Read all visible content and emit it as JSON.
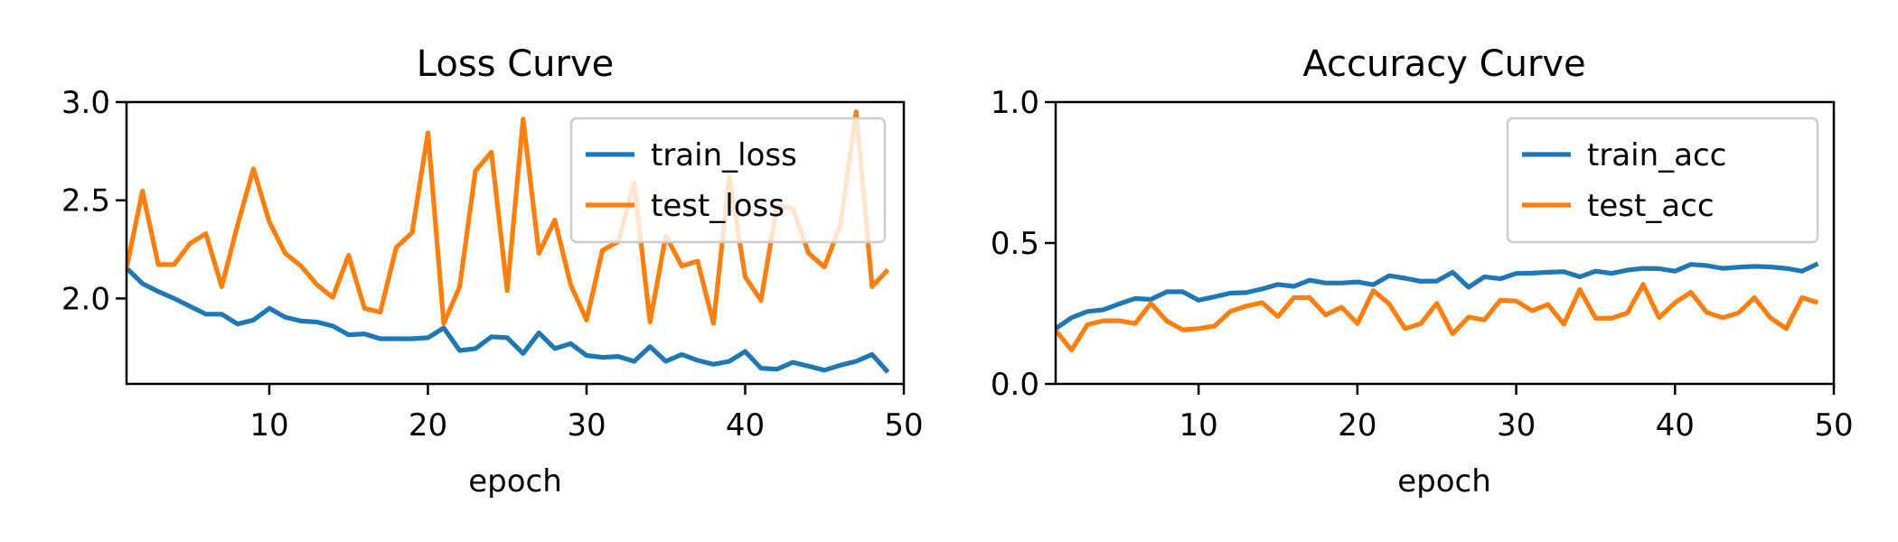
{
  "chart_data": [
    {
      "type": "line",
      "title": "Loss Curve",
      "xlabel": "epoch",
      "ylabel": "",
      "xlim": [
        1,
        50
      ],
      "ylim": [
        1.565,
        3.0
      ],
      "xticks": [
        10,
        20,
        30,
        40,
        50
      ],
      "xtick_labels": [
        "10",
        "20",
        "30",
        "40",
        "50"
      ],
      "yticks": [
        2.0,
        2.5,
        3.0
      ],
      "ytick_labels": [
        "2.0",
        "2.5",
        "3.0"
      ],
      "grid": false,
      "legend": "top-right",
      "x": [
        1,
        2,
        3,
        4,
        5,
        6,
        7,
        8,
        9,
        10,
        11,
        12,
        13,
        14,
        15,
        16,
        17,
        18,
        19,
        20,
        21,
        22,
        23,
        24,
        25,
        26,
        27,
        28,
        29,
        30,
        31,
        32,
        33,
        34,
        35,
        36,
        37,
        38,
        39,
        40,
        41,
        42,
        43,
        44,
        45,
        46,
        47,
        48,
        49
      ],
      "series": [
        {
          "name": "train_loss",
          "color": "#1f77b4",
          "values": [
            2.155,
            2.076,
            2.035,
            2.0,
            1.96,
            1.92,
            1.92,
            1.87,
            1.89,
            1.95,
            1.905,
            1.885,
            1.88,
            1.86,
            1.815,
            1.82,
            1.795,
            1.795,
            1.795,
            1.8,
            1.85,
            1.735,
            1.745,
            1.805,
            1.8,
            1.72,
            1.825,
            1.745,
            1.77,
            1.71,
            1.7,
            1.705,
            1.68,
            1.755,
            1.68,
            1.715,
            1.685,
            1.665,
            1.68,
            1.73,
            1.645,
            1.64,
            1.675,
            1.655,
            1.635,
            1.66,
            1.68,
            1.715,
            1.625
          ]
        },
        {
          "name": "test_loss",
          "color": "#ff7f0e",
          "values": [
            2.155,
            2.547,
            2.173,
            2.173,
            2.28,
            2.33,
            2.06,
            2.375,
            2.66,
            2.39,
            2.23,
            2.165,
            2.07,
            2.005,
            2.22,
            1.95,
            1.93,
            2.26,
            2.335,
            2.843,
            1.873,
            2.06,
            2.65,
            2.745,
            2.04,
            2.913,
            2.23,
            2.4,
            2.07,
            1.89,
            2.245,
            2.29,
            2.59,
            1.88,
            2.32,
            2.165,
            2.19,
            1.873,
            2.62,
            2.11,
            1.99,
            2.47,
            2.46,
            2.23,
            2.16,
            2.375,
            2.95,
            2.06,
            2.146
          ]
        }
      ]
    },
    {
      "type": "line",
      "title": "Accuracy Curve",
      "xlabel": "epoch",
      "ylabel": "",
      "xlim": [
        1,
        50
      ],
      "ylim": [
        0.0,
        1.0
      ],
      "xticks": [
        10,
        20,
        30,
        40,
        50
      ],
      "xtick_labels": [
        "10",
        "20",
        "30",
        "40",
        "50"
      ],
      "yticks": [
        0.0,
        0.5,
        1.0
      ],
      "ytick_labels": [
        "0.0",
        "0.5",
        "1.0"
      ],
      "grid": false,
      "legend": "top-right",
      "x": [
        1,
        2,
        3,
        4,
        5,
        6,
        7,
        8,
        9,
        10,
        11,
        12,
        13,
        14,
        15,
        16,
        17,
        18,
        19,
        20,
        21,
        22,
        23,
        24,
        25,
        26,
        27,
        28,
        29,
        30,
        31,
        32,
        33,
        34,
        35,
        36,
        37,
        38,
        39,
        40,
        41,
        42,
        43,
        44,
        45,
        46,
        47,
        48,
        49
      ],
      "series": [
        {
          "name": "train_acc",
          "color": "#1f77b4",
          "values": [
            0.196,
            0.235,
            0.257,
            0.263,
            0.284,
            0.303,
            0.3,
            0.327,
            0.327,
            0.297,
            0.309,
            0.322,
            0.324,
            0.337,
            0.353,
            0.346,
            0.368,
            0.358,
            0.358,
            0.362,
            0.352,
            0.384,
            0.375,
            0.364,
            0.365,
            0.396,
            0.343,
            0.38,
            0.373,
            0.392,
            0.393,
            0.396,
            0.398,
            0.38,
            0.4,
            0.392,
            0.404,
            0.41,
            0.409,
            0.4,
            0.424,
            0.42,
            0.41,
            0.414,
            0.417,
            0.415,
            0.41,
            0.4,
            0.427
          ]
        },
        {
          "name": "test_acc",
          "color": "#ff7f0e",
          "values": [
            0.19,
            0.12,
            0.21,
            0.224,
            0.224,
            0.214,
            0.286,
            0.223,
            0.192,
            0.196,
            0.205,
            0.257,
            0.276,
            0.288,
            0.239,
            0.306,
            0.306,
            0.245,
            0.272,
            0.214,
            0.331,
            0.284,
            0.196,
            0.214,
            0.286,
            0.178,
            0.237,
            0.227,
            0.297,
            0.294,
            0.26,
            0.282,
            0.212,
            0.335,
            0.233,
            0.233,
            0.252,
            0.353,
            0.235,
            0.288,
            0.325,
            0.254,
            0.235,
            0.252,
            0.306,
            0.235,
            0.196,
            0.306,
            0.288
          ]
        }
      ]
    }
  ]
}
